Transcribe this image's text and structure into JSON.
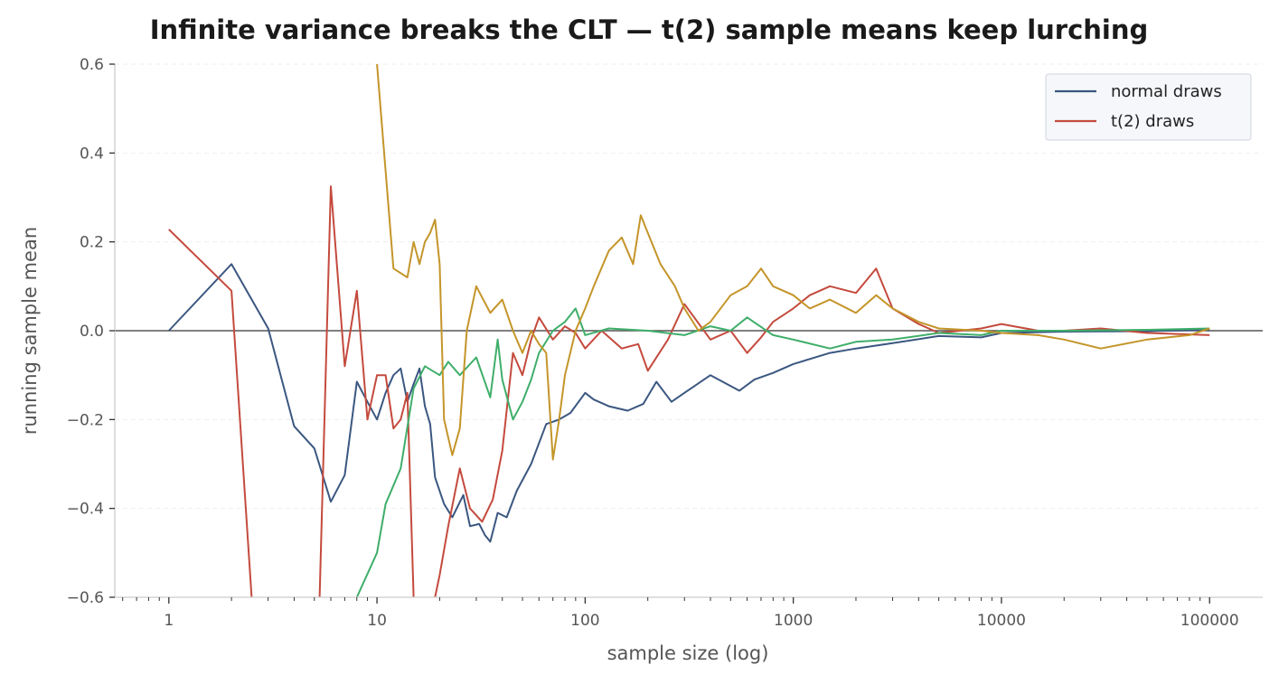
{
  "chart_data": {
    "type": "line",
    "title": "Infinite variance breaks the CLT — t(2) sample means keep lurching",
    "xlabel": "sample size (log)",
    "ylabel": "running sample mean",
    "x_scale": "log",
    "xlim": [
      0.55,
      180000
    ],
    "ylim": [
      -0.6,
      0.6
    ],
    "x_ticks": [
      1,
      10,
      100,
      1000,
      10000,
      100000
    ],
    "x_tick_labels": [
      "1",
      "10",
      "100",
      "1000",
      "10000",
      "100000"
    ],
    "y_ticks": [
      -0.6,
      -0.4,
      -0.2,
      0.0,
      0.2,
      0.4,
      0.6
    ],
    "y_tick_labels": [
      "−0.6",
      "−0.4",
      "−0.2",
      "0.0",
      "0.2",
      "0.4",
      "0.6"
    ],
    "grid": "y-dashed",
    "reference_line": 0.0,
    "legend": {
      "placement": "top-right",
      "entries": [
        {
          "label": "normal draws",
          "color": "#3b5780"
        },
        {
          "label": "t(2) draws",
          "color": "#c44a3d"
        }
      ]
    },
    "series": [
      {
        "color": "#3b5780",
        "points": [
          [
            1,
            0.0
          ],
          [
            2,
            0.15
          ],
          [
            3,
            0.005
          ],
          [
            4,
            -0.215
          ],
          [
            5,
            -0.265
          ],
          [
            6,
            -0.385
          ],
          [
            7,
            -0.325
          ],
          [
            8,
            -0.115
          ],
          [
            9,
            -0.16
          ],
          [
            10,
            -0.2
          ],
          [
            11,
            -0.14
          ],
          [
            12,
            -0.1
          ],
          [
            13,
            -0.085
          ],
          [
            14,
            -0.16
          ],
          [
            15,
            -0.12
          ],
          [
            16,
            -0.085
          ],
          [
            17,
            -0.17
          ],
          [
            18,
            -0.21
          ],
          [
            19,
            -0.33
          ],
          [
            21,
            -0.39
          ],
          [
            23,
            -0.42
          ],
          [
            26,
            -0.37
          ],
          [
            28,
            -0.44
          ],
          [
            31,
            -0.435
          ],
          [
            33,
            -0.46
          ],
          [
            35,
            -0.475
          ],
          [
            38,
            -0.41
          ],
          [
            42,
            -0.42
          ],
          [
            47,
            -0.36
          ],
          [
            55,
            -0.3
          ],
          [
            65,
            -0.21
          ],
          [
            75,
            -0.2
          ],
          [
            85,
            -0.185
          ],
          [
            100,
            -0.14
          ],
          [
            110,
            -0.155
          ],
          [
            130,
            -0.17
          ],
          [
            160,
            -0.18
          ],
          [
            190,
            -0.165
          ],
          [
            220,
            -0.115
          ],
          [
            260,
            -0.16
          ],
          [
            300,
            -0.14
          ],
          [
            400,
            -0.1
          ],
          [
            550,
            -0.135
          ],
          [
            650,
            -0.11
          ],
          [
            800,
            -0.095
          ],
          [
            1000,
            -0.075
          ],
          [
            1500,
            -0.05
          ],
          [
            2000,
            -0.04
          ],
          [
            3000,
            -0.028
          ],
          [
            5000,
            -0.012
          ],
          [
            8000,
            -0.015
          ],
          [
            10000,
            -0.005
          ],
          [
            20000,
            -0.002
          ],
          [
            50000,
            -0.001
          ],
          [
            100000,
            0.002
          ]
        ]
      },
      {
        "color": "#c44a3d",
        "points": [
          [
            1,
            0.228
          ],
          [
            2,
            0.09
          ],
          [
            2.5,
            -0.6
          ]
        ]
      },
      {
        "color": "#c44a3d",
        "points": [
          [
            5.3,
            -0.6
          ],
          [
            6,
            0.325
          ],
          [
            7,
            -0.08
          ],
          [
            8,
            0.09
          ],
          [
            9,
            -0.2
          ],
          [
            10,
            -0.1
          ],
          [
            11,
            -0.1
          ],
          [
            12,
            -0.22
          ],
          [
            13,
            -0.2
          ],
          [
            14,
            -0.14
          ],
          [
            15,
            -0.6
          ]
        ]
      },
      {
        "color": "#c44a3d",
        "points": [
          [
            19,
            -0.6
          ],
          [
            20,
            -0.55
          ],
          [
            22,
            -0.44
          ],
          [
            25,
            -0.31
          ],
          [
            28,
            -0.4
          ],
          [
            32,
            -0.43
          ],
          [
            36,
            -0.38
          ],
          [
            40,
            -0.27
          ],
          [
            45,
            -0.05
          ],
          [
            50,
            -0.1
          ],
          [
            55,
            -0.02
          ],
          [
            60,
            0.03
          ],
          [
            70,
            -0.02
          ],
          [
            80,
            0.01
          ],
          [
            90,
            -0.005
          ],
          [
            100,
            -0.04
          ],
          [
            120,
            0.0
          ],
          [
            150,
            -0.04
          ],
          [
            180,
            -0.03
          ],
          [
            200,
            -0.09
          ],
          [
            250,
            -0.02
          ],
          [
            300,
            0.06
          ],
          [
            400,
            -0.02
          ],
          [
            500,
            0.0
          ],
          [
            600,
            -0.05
          ],
          [
            700,
            -0.015
          ],
          [
            800,
            0.02
          ],
          [
            1000,
            0.05
          ],
          [
            1200,
            0.08
          ],
          [
            1500,
            0.1
          ],
          [
            2000,
            0.085
          ],
          [
            2500,
            0.14
          ],
          [
            3000,
            0.05
          ],
          [
            4000,
            0.015
          ],
          [
            5000,
            -0.005
          ],
          [
            8000,
            0.005
          ],
          [
            10000,
            0.015
          ],
          [
            15000,
            0.0
          ],
          [
            20000,
            0.0
          ],
          [
            30000,
            0.005
          ],
          [
            50000,
            -0.005
          ],
          [
            100000,
            -0.01
          ]
        ]
      },
      {
        "color": "#3fae6a",
        "points": [
          [
            8,
            -0.6
          ],
          [
            10,
            -0.5
          ],
          [
            11,
            -0.39
          ],
          [
            13,
            -0.31
          ],
          [
            15,
            -0.13
          ],
          [
            17,
            -0.08
          ],
          [
            20,
            -0.1
          ],
          [
            22,
            -0.07
          ],
          [
            25,
            -0.1
          ],
          [
            30,
            -0.06
          ],
          [
            35,
            -0.15
          ],
          [
            38,
            -0.02
          ],
          [
            40,
            -0.11
          ],
          [
            45,
            -0.2
          ],
          [
            50,
            -0.16
          ],
          [
            55,
            -0.11
          ],
          [
            60,
            -0.05
          ],
          [
            70,
            0.0
          ],
          [
            80,
            0.02
          ],
          [
            90,
            0.05
          ],
          [
            100,
            -0.01
          ],
          [
            130,
            0.005
          ],
          [
            200,
            0.0
          ],
          [
            300,
            -0.01
          ],
          [
            400,
            0.01
          ],
          [
            500,
            0.0
          ],
          [
            600,
            0.03
          ],
          [
            800,
            -0.01
          ],
          [
            1000,
            -0.02
          ],
          [
            1500,
            -0.04
          ],
          [
            2000,
            -0.025
          ],
          [
            3000,
            -0.02
          ],
          [
            5000,
            -0.005
          ],
          [
            8000,
            -0.01
          ],
          [
            10000,
            0.0
          ],
          [
            20000,
            0.0
          ],
          [
            50000,
            0.002
          ],
          [
            100000,
            0.005
          ]
        ]
      },
      {
        "color": "#c4952a",
        "points": [
          [
            10,
            0.6
          ],
          [
            12,
            0.14
          ],
          [
            14,
            0.12
          ],
          [
            15,
            0.2
          ],
          [
            16,
            0.15
          ],
          [
            17,
            0.2
          ],
          [
            18,
            0.22
          ],
          [
            19,
            0.25
          ],
          [
            20,
            0.15
          ],
          [
            21,
            -0.2
          ],
          [
            23,
            -0.28
          ],
          [
            25,
            -0.22
          ],
          [
            27,
            0.0
          ],
          [
            30,
            0.1
          ],
          [
            35,
            0.04
          ],
          [
            40,
            0.07
          ],
          [
            45,
            0.0
          ],
          [
            50,
            -0.05
          ],
          [
            55,
            0.0
          ],
          [
            60,
            -0.03
          ],
          [
            65,
            -0.05
          ],
          [
            70,
            -0.29
          ],
          [
            75,
            -0.2
          ],
          [
            80,
            -0.1
          ],
          [
            90,
            0.0
          ],
          [
            100,
            0.05
          ],
          [
            110,
            0.1
          ],
          [
            130,
            0.18
          ],
          [
            150,
            0.21
          ],
          [
            170,
            0.15
          ],
          [
            185,
            0.26
          ],
          [
            200,
            0.22
          ],
          [
            230,
            0.15
          ],
          [
            270,
            0.1
          ],
          [
            300,
            0.05
          ],
          [
            350,
            0.0
          ],
          [
            400,
            0.02
          ],
          [
            500,
            0.08
          ],
          [
            600,
            0.1
          ],
          [
            700,
            0.14
          ],
          [
            800,
            0.1
          ],
          [
            1000,
            0.08
          ],
          [
            1200,
            0.05
          ],
          [
            1500,
            0.07
          ],
          [
            2000,
            0.04
          ],
          [
            2500,
            0.08
          ],
          [
            3000,
            0.05
          ],
          [
            4000,
            0.02
          ],
          [
            5000,
            0.005
          ],
          [
            8000,
            0.0
          ],
          [
            10000,
            -0.005
          ],
          [
            15000,
            -0.01
          ],
          [
            20000,
            -0.02
          ],
          [
            30000,
            -0.04
          ],
          [
            50000,
            -0.02
          ],
          [
            80000,
            -0.01
          ],
          [
            100000,
            0.005
          ]
        ]
      }
    ]
  }
}
